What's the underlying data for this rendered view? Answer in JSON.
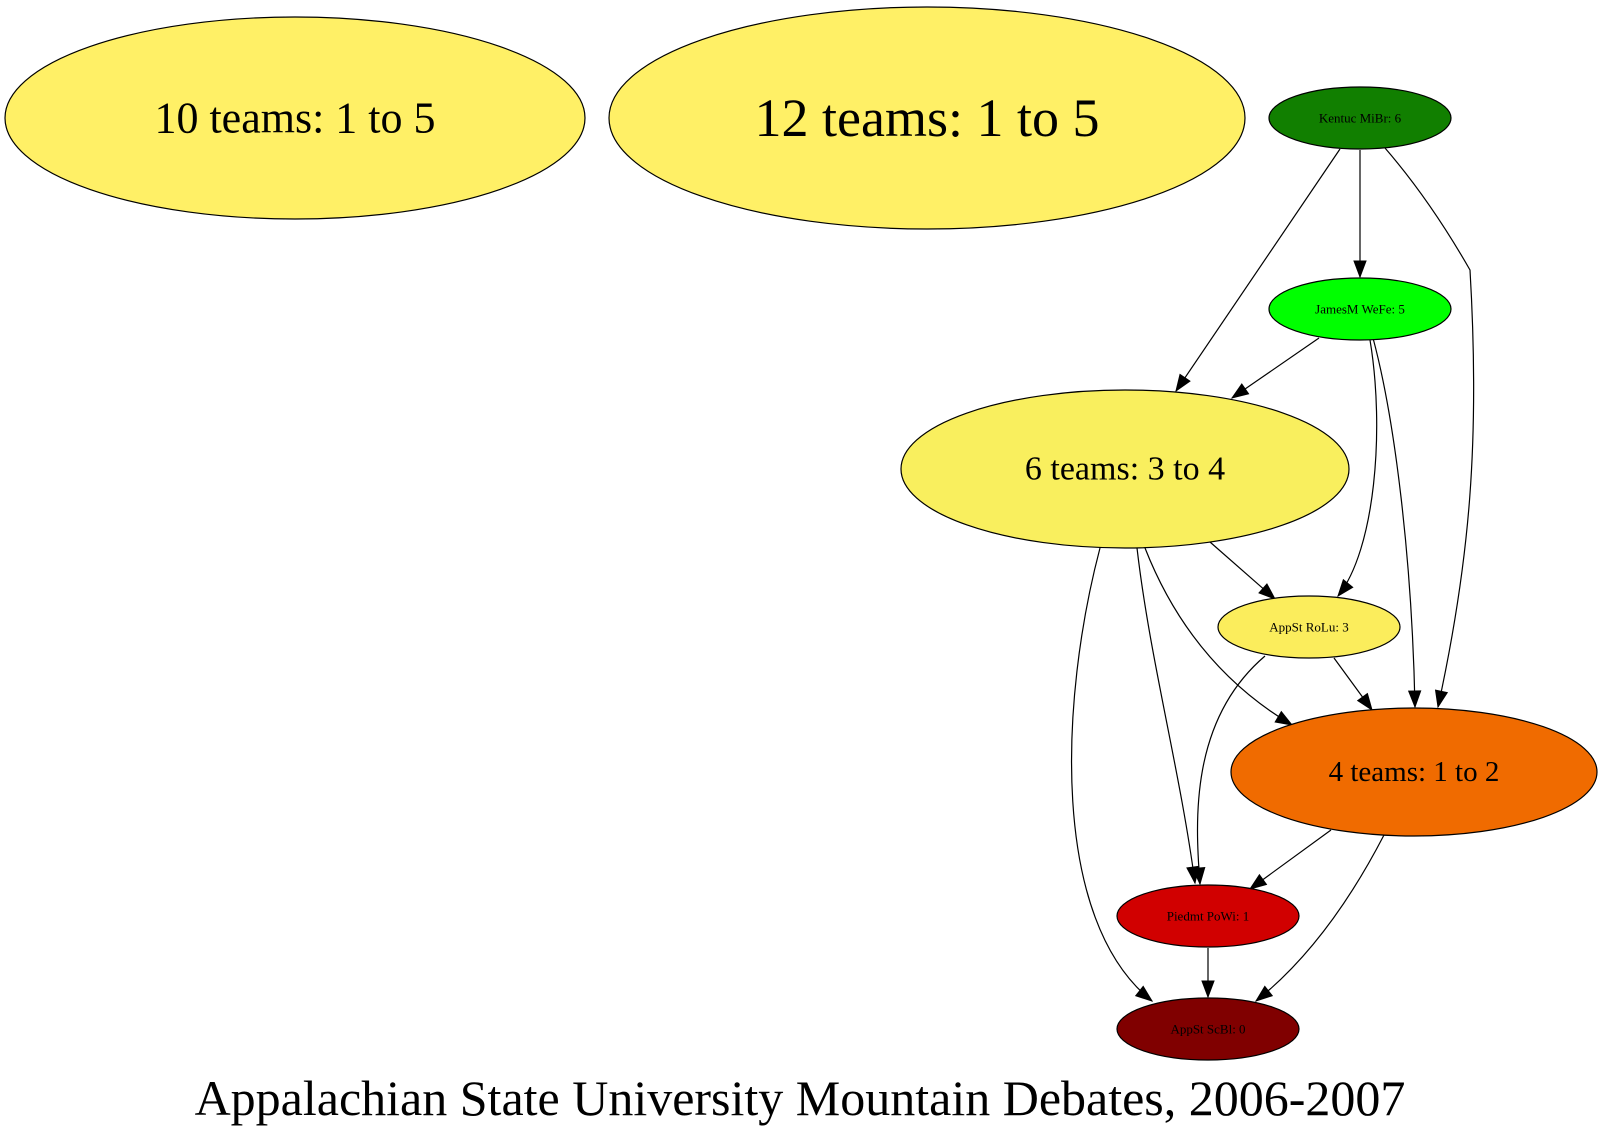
{
  "caption": "Appalachian State University Mountain Debates, 2006-2007",
  "nodes": [
    {
      "id": "g10",
      "label": "10 teams: 1 to 5",
      "fill": "#fff066"
    },
    {
      "id": "g12",
      "label": "12 teams: 1 to 5",
      "fill": "#fff066"
    },
    {
      "id": "kentuc",
      "label": "Kentuc MiBr: 6",
      "fill": "#117f00"
    },
    {
      "id": "jamesm",
      "label": "JamesM WeFe: 5",
      "fill": "#00ff00"
    },
    {
      "id": "g6",
      "label": "6 teams: 3 to 4",
      "fill": "#f9ef5e"
    },
    {
      "id": "appst_rolu",
      "label": "AppSt RoLu: 3",
      "fill": "#fbed5c"
    },
    {
      "id": "g4",
      "label": "4 teams: 1 to 2",
      "fill": "#f06b00"
    },
    {
      "id": "piedmt",
      "label": "Piedmt PoWi: 1",
      "fill": "#d10000"
    },
    {
      "id": "appst_scbl",
      "label": "AppSt ScBl: 0",
      "fill": "#800000"
    }
  ],
  "edges": [
    {
      "from": "kentuc",
      "to": "jamesm"
    },
    {
      "from": "kentuc",
      "to": "g6"
    },
    {
      "from": "kentuc",
      "to": "g4"
    },
    {
      "from": "jamesm",
      "to": "g6"
    },
    {
      "from": "jamesm",
      "to": "appst_rolu"
    },
    {
      "from": "jamesm",
      "to": "g4"
    },
    {
      "from": "g6",
      "to": "appst_rolu"
    },
    {
      "from": "g6",
      "to": "g4"
    },
    {
      "from": "g6",
      "to": "piedmt"
    },
    {
      "from": "g6",
      "to": "appst_scbl"
    },
    {
      "from": "appst_rolu",
      "to": "g4"
    },
    {
      "from": "appst_rolu",
      "to": "piedmt"
    },
    {
      "from": "g4",
      "to": "piedmt"
    },
    {
      "from": "g4",
      "to": "appst_scbl"
    },
    {
      "from": "piedmt",
      "to": "appst_scbl"
    }
  ]
}
